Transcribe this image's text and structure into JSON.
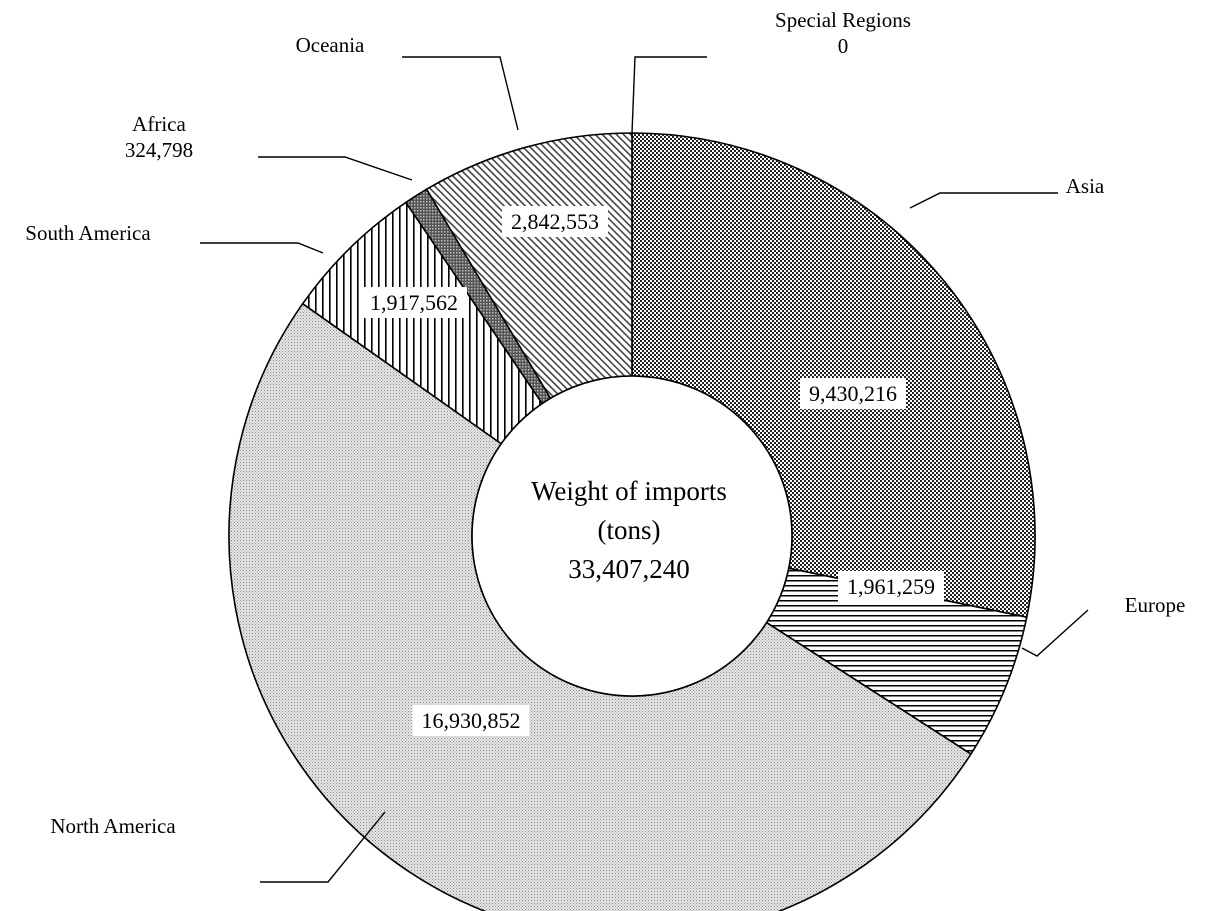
{
  "chart_data": {
    "type": "donut",
    "center_text": {
      "line1": "Weight of imports",
      "line2": "(tons)",
      "total": "33,407,240"
    },
    "slices": [
      {
        "name": "Asia",
        "value": 9430216,
        "value_label": "9,430,216",
        "pattern": "checker-dense"
      },
      {
        "name": "Europe",
        "value": 1961259,
        "value_label": "1,961,259",
        "pattern": "horizontal-lines"
      },
      {
        "name": "North America",
        "value": 16930852,
        "value_label": "16,930,852",
        "pattern": "fine-dots"
      },
      {
        "name": "South America",
        "value": 1917562,
        "value_label": "1,917,562",
        "pattern": "vertical-lines"
      },
      {
        "name": "Africa",
        "value": 324798,
        "value_label": "324,798",
        "pattern": "dark-grid"
      },
      {
        "name": "Oceania",
        "value": 2842553,
        "value_label": "2,842,553",
        "pattern": "diagonal-lines"
      },
      {
        "name": "Special Regions",
        "value": 0,
        "value_label": "0",
        "pattern": "none"
      }
    ],
    "start": "top",
    "direction": "clockwise"
  }
}
